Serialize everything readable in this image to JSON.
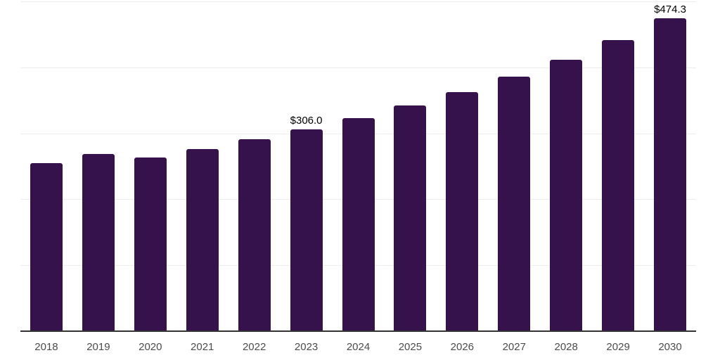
{
  "chart_data": {
    "type": "bar",
    "title": "",
    "xlabel": "",
    "ylabel": "",
    "categories": [
      "2018",
      "2019",
      "2020",
      "2021",
      "2022",
      "2023",
      "2024",
      "2025",
      "2026",
      "2027",
      "2028",
      "2029",
      "2030"
    ],
    "values": [
      254.6,
      268.7,
      263.4,
      276.5,
      290.7,
      306.0,
      322.9,
      342.1,
      362.6,
      386.4,
      411.4,
      441.7,
      474.3
    ],
    "value_labels": [
      {
        "category": "2023",
        "text": "$306.0"
      },
      {
        "category": "2030",
        "text": "$474.3"
      }
    ],
    "ylim": [
      0,
      500
    ],
    "gridline_values": [
      100,
      200,
      300,
      400,
      500
    ],
    "grid": true,
    "legend": false,
    "y_axis_tick_labels_visible": false,
    "colors": {
      "background": "#ffffff",
      "bar": "#36124d",
      "gridline": "#ededed",
      "axis_line": "#333333",
      "tick_label": "#4c4c4c",
      "value_label": "#000000"
    }
  }
}
